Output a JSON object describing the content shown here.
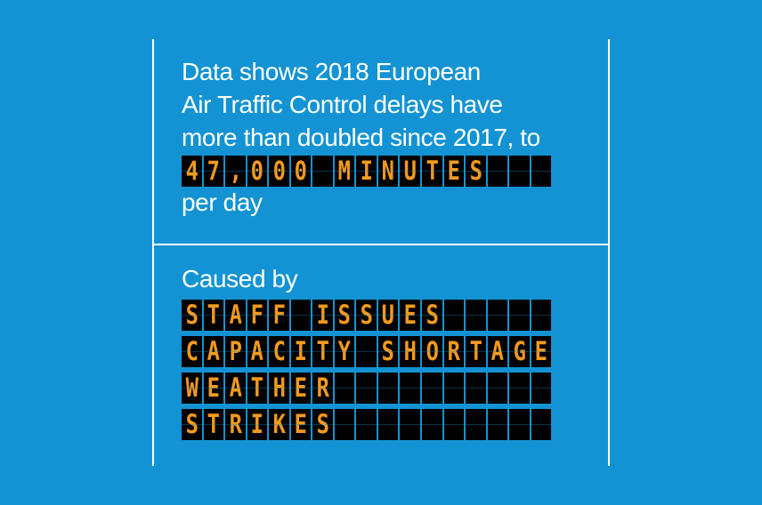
{
  "colors": {
    "background": "#1393D3",
    "text": "#FFFFFF",
    "board_cell": "#000000",
    "board_text": "#F39A1E"
  },
  "intro_lines": [
    "Data shows 2018 European",
    "Air Traffic Control delays have",
    "more than doubled since 2017, to"
  ],
  "headline_board": "47,000 MINUTES",
  "per_day": "per day",
  "caused_by": "Caused by",
  "causes": [
    "STAFF ISSUES",
    "CAPACITY SHORTAGE",
    "WEATHER",
    "STRIKES"
  ]
}
